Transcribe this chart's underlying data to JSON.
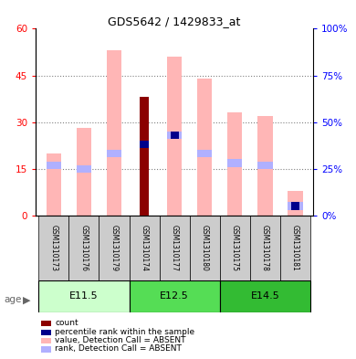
{
  "title": "GDS5642 / 1429833_at",
  "samples": [
    "GSM1310173",
    "GSM1310176",
    "GSM1310179",
    "GSM1310174",
    "GSM1310177",
    "GSM1310180",
    "GSM1310175",
    "GSM1310178",
    "GSM1310181"
  ],
  "value_absent": [
    20,
    28,
    53,
    0,
    51,
    44,
    33,
    32,
    8
  ],
  "rank_absent_pct": [
    27,
    25,
    33,
    0,
    43,
    33,
    28,
    27,
    5
  ],
  "count_value": [
    0,
    0,
    0,
    38,
    0,
    0,
    0,
    0,
    0
  ],
  "percentile_rank_pct": [
    0,
    0,
    0,
    38,
    43,
    0,
    0,
    0,
    5
  ],
  "rank_absent_marker_y": [
    16,
    15,
    20,
    0,
    26,
    20,
    17,
    16,
    3
  ],
  "percentile_marker_y": [
    0,
    0,
    0,
    23,
    26,
    0,
    0,
    0,
    3
  ],
  "ylim_left": [
    0,
    60
  ],
  "ylim_right": [
    0,
    100
  ],
  "yticks_left": [
    0,
    15,
    30,
    45,
    60
  ],
  "yticks_right": [
    0,
    25,
    50,
    75,
    100
  ],
  "bar_width": 0.5,
  "color_count": "#8b0000",
  "color_percentile": "#00008b",
  "color_value_absent": "#ffb6b6",
  "color_rank_absent": "#b0b0ff",
  "group_configs": [
    {
      "label": "E11.5",
      "start": 0,
      "end": 3,
      "facecolor": "#ccffcc",
      "edgecolor": "#aaddaa"
    },
    {
      "label": "E12.5",
      "start": 3,
      "end": 6,
      "facecolor": "#55dd55",
      "edgecolor": "#33bb33"
    },
    {
      "label": "E14.5",
      "start": 6,
      "end": 9,
      "facecolor": "#33bb33",
      "edgecolor": "#229922"
    }
  ],
  "legend_items": [
    {
      "label": "count",
      "color": "#8b0000"
    },
    {
      "label": "percentile rank within the sample",
      "color": "#00008b"
    },
    {
      "label": "value, Detection Call = ABSENT",
      "color": "#ffb6b6"
    },
    {
      "label": "rank, Detection Call = ABSENT",
      "color": "#b0b0ff"
    }
  ]
}
